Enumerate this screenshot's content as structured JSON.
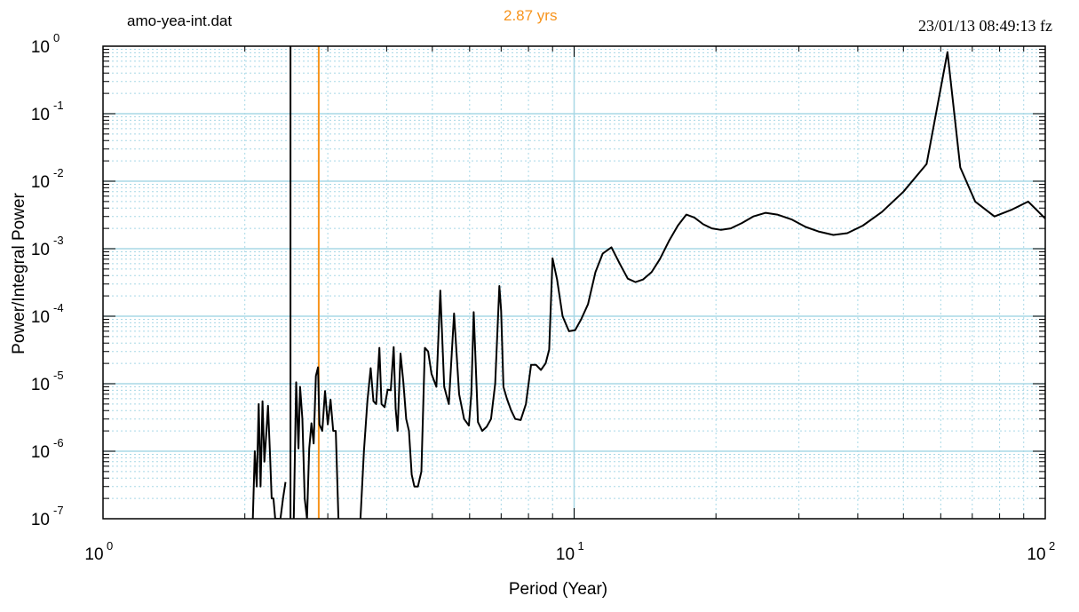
{
  "header": {
    "filename": "amo-yea-int.dat",
    "marker_label": "2.87 yrs",
    "timestamp": "23/01/13  08:49:13 fz"
  },
  "colors": {
    "grid": "#a8d8e6",
    "series": "#000000",
    "marker": "#f7941d",
    "black_marker": "#000000"
  },
  "chart_data": {
    "type": "line",
    "xlabel": "Period (Year)",
    "ylabel": "Power/Integral Power",
    "xscale": "log",
    "yscale": "log",
    "xlim": [
      1,
      100
    ],
    "ylim": [
      1e-07,
      1
    ],
    "x_ticks": [
      {
        "base": "10",
        "exp": "0",
        "value": 1
      },
      {
        "base": "10",
        "exp": "1",
        "value": 10
      },
      {
        "base": "10",
        "exp": "2",
        "value": 100
      }
    ],
    "y_ticks": [
      {
        "base": "10",
        "exp": "0",
        "value": 1
      },
      {
        "base": "10",
        "exp": "-1",
        "value": 0.1
      },
      {
        "base": "10",
        "exp": "-2",
        "value": 0.01
      },
      {
        "base": "10",
        "exp": "-3",
        "value": 0.001
      },
      {
        "base": "10",
        "exp": "-4",
        "value": 0.0001
      },
      {
        "base": "10",
        "exp": "-5",
        "value": 1e-05
      },
      {
        "base": "10",
        "exp": "-6",
        "value": 1e-06
      },
      {
        "base": "10",
        "exp": "-7",
        "value": 1e-07
      }
    ],
    "grid": true,
    "vertical_markers": [
      {
        "x": 2.5,
        "color": "black"
      },
      {
        "x": 2.87,
        "color": "orange"
      }
    ],
    "series": [
      {
        "x": [
          2.08,
          2.1,
          2.12,
          2.14,
          2.16,
          2.18,
          2.2,
          2.22,
          2.24,
          2.26,
          2.28,
          2.3,
          2.32,
          2.35,
          2.38,
          2.41,
          2.44
        ],
        "y": [
          1e-07,
          1e-06,
          3e-07,
          5e-06,
          3e-07,
          5.5e-06,
          7e-07,
          1.7e-06,
          4.7e-06,
          1e-06,
          2e-07,
          2e-07,
          1e-07,
          1e-07,
          1e-07,
          2e-07,
          3.5e-07
        ]
      },
      {
        "x": [
          2.54,
          2.57,
          2.6,
          2.62,
          2.65,
          2.68,
          2.71,
          2.74,
          2.77,
          2.8,
          2.83,
          2.86,
          2.88,
          2.92,
          2.96,
          3.0,
          3.04,
          3.08,
          3.12,
          3.16,
          3.2,
          3.25
        ],
        "y": [
          1e-07,
          1.05e-05,
          1.1e-06,
          9e-06,
          3e-06,
          2e-07,
          1e-07,
          1.1e-06,
          2.6e-06,
          1.3e-06,
          1.3e-05,
          1.75e-05,
          2.5e-06,
          2e-06,
          7.8e-06,
          2.5e-06,
          5.8e-06,
          2e-06,
          2e-06,
          1e-07,
          5e-08,
          1e-07
        ]
      },
      {
        "x": [
          3.52,
          3.58,
          3.64,
          3.7,
          3.75,
          3.8,
          3.86,
          3.9,
          3.96,
          4.02,
          4.08,
          4.14,
          4.18,
          4.22,
          4.28,
          4.34,
          4.4,
          4.46,
          4.52,
          4.58,
          4.66,
          4.74,
          4.82,
          4.9,
          4.98,
          5.1,
          5.2,
          5.3,
          5.42,
          5.56,
          5.7,
          5.84,
          5.98,
          6.05,
          6.12,
          6.25,
          6.38,
          6.52,
          6.66,
          6.8,
          6.94,
          7.0,
          7.08,
          7.2,
          7.35,
          7.5,
          7.7,
          7.9,
          8.1,
          8.3,
          8.5,
          8.7,
          8.85,
          9.0,
          9.2,
          9.45,
          9.75,
          10.05,
          10.35,
          10.7,
          11.1,
          11.5,
          12.0,
          12.5,
          13.0,
          13.5,
          14.0,
          14.6,
          15.2,
          15.9,
          16.6,
          17.3,
          18.0,
          18.8,
          19.6,
          20.5,
          21.5,
          22.7,
          24.0,
          25.5,
          27.0,
          29.0,
          31.0,
          33.0,
          35.5,
          38.0,
          41.0,
          45.0,
          50.0,
          56.0,
          62.0,
          66.0,
          71.0,
          78.0,
          85.0,
          92.0,
          100.0
        ],
        "y": [
          1e-07,
          1e-06,
          5.5e-06,
          1.7e-05,
          5.5e-06,
          5e-06,
          3.4e-05,
          5e-06,
          4.5e-06,
          8.2e-06,
          8e-06,
          3.5e-05,
          4.3e-06,
          2e-06,
          2.8e-05,
          1.05e-05,
          3e-06,
          2e-06,
          4.5e-07,
          3e-07,
          3e-07,
          5e-07,
          3.4e-05,
          3e-05,
          1.4e-05,
          9e-06,
          0.00024,
          9e-06,
          5e-06,
          0.00011,
          7e-06,
          3e-06,
          2.4e-06,
          7e-06,
          0.000115,
          2.7e-06,
          2e-06,
          2.3e-06,
          3e-06,
          1e-05,
          0.00028,
          0.00012,
          9e-06,
          6e-06,
          4e-06,
          3e-06,
          2.9e-06,
          5e-06,
          1.9e-05,
          1.9e-05,
          1.6e-05,
          2e-05,
          3.2e-05,
          0.00072,
          0.00035,
          0.0001,
          6e-05,
          6.2e-05,
          9e-05,
          0.00015,
          0.00045,
          0.00085,
          0.00105,
          0.0006,
          0.00036,
          0.00032,
          0.00035,
          0.00045,
          0.0007,
          0.0013,
          0.0022,
          0.0032,
          0.0029,
          0.0023,
          0.002,
          0.0019,
          0.002,
          0.0024,
          0.003,
          0.0034,
          0.0032,
          0.0027,
          0.0021,
          0.0018,
          0.0016,
          0.0017,
          0.0022,
          0.0035,
          0.007,
          0.018,
          0.82,
          0.016,
          0.005,
          0.003,
          0.0038,
          0.005,
          0.0028
        ]
      }
    ]
  }
}
